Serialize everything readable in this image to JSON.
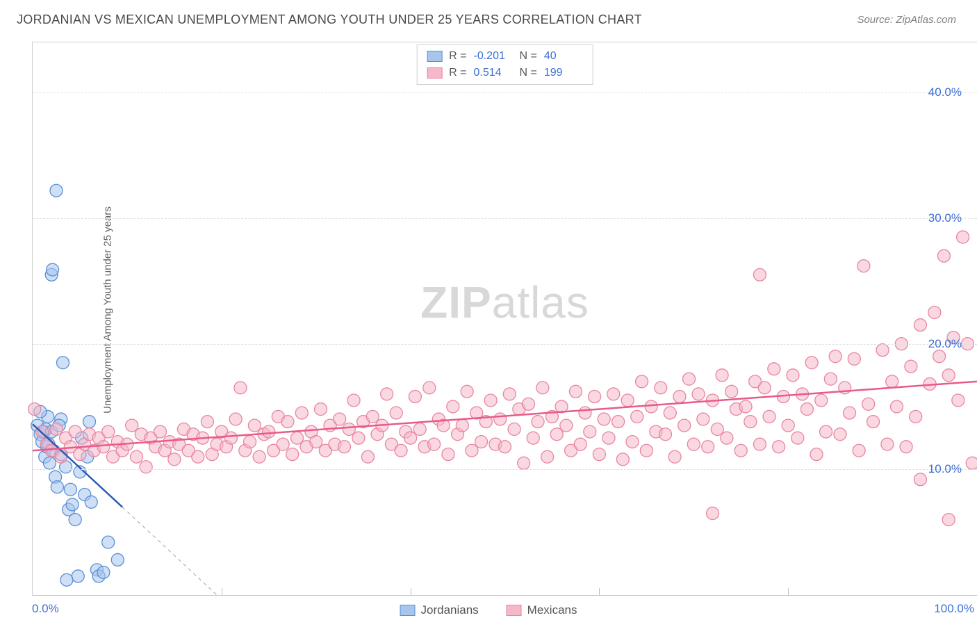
{
  "title": "JORDANIAN VS MEXICAN UNEMPLOYMENT AMONG YOUTH UNDER 25 YEARS CORRELATION CHART",
  "source": "Source: ZipAtlas.com",
  "ylabel": "Unemployment Among Youth under 25 years",
  "watermark_bold": "ZIP",
  "watermark_light": "atlas",
  "chart": {
    "type": "scatter",
    "xlim": [
      0,
      100
    ],
    "ylim": [
      0,
      44
    ],
    "yticks": [
      10,
      20,
      30,
      40
    ],
    "ytick_labels": [
      "10.0%",
      "20.0%",
      "30.0%",
      "40.0%"
    ],
    "xticks": [
      0,
      20,
      40,
      60,
      80,
      100
    ],
    "xtick_labels_visible": {
      "0": "0.0%",
      "100": "100.0%"
    },
    "grid_color": "#e0e0e0",
    "background_color": "#ffffff",
    "tick_color": "#3b6fd6",
    "axis_label_color": "#606060",
    "title_color": "#4a4a4a",
    "marker_radius": 9,
    "marker_stroke_width": 1.3,
    "trend_line_width": 2.5,
    "series": [
      {
        "name": "Jordanians",
        "fill_color": "#a8c5ec",
        "fill_opacity": 0.55,
        "stroke_color": "#5a8fd6",
        "trend_color": "#2a5db8",
        "R": "-0.201",
        "N": "40",
        "trend_solid": {
          "x1": 0,
          "y1": 13.6,
          "x2": 9.5,
          "y2": 7.0
        },
        "trend_dashed": {
          "x1": 9.5,
          "y1": 7.0,
          "x2": 19.5,
          "y2": 0
        },
        "points": [
          [
            0.5,
            13.5
          ],
          [
            0.8,
            12.8
          ],
          [
            1.0,
            12.2
          ],
          [
            1.2,
            13.0
          ],
          [
            1.3,
            11.0
          ],
          [
            1.5,
            11.8
          ],
          [
            1.6,
            14.2
          ],
          [
            1.8,
            10.5
          ],
          [
            2.0,
            25.5
          ],
          [
            2.1,
            25.9
          ],
          [
            2.5,
            32.2
          ],
          [
            0.8,
            14.6
          ],
          [
            1.4,
            13.2
          ],
          [
            1.7,
            12.0
          ],
          [
            2.0,
            13.0
          ],
          [
            2.2,
            11.5
          ],
          [
            2.4,
            9.4
          ],
          [
            2.6,
            8.6
          ],
          [
            3.0,
            11.2
          ],
          [
            3.2,
            18.5
          ],
          [
            3.5,
            10.2
          ],
          [
            3.8,
            6.8
          ],
          [
            4.0,
            8.4
          ],
          [
            4.2,
            7.2
          ],
          [
            4.5,
            6.0
          ],
          [
            3.0,
            14.0
          ],
          [
            5.0,
            9.8
          ],
          [
            5.5,
            8.0
          ],
          [
            5.8,
            11.0
          ],
          [
            6.2,
            7.4
          ],
          [
            6.8,
            2.0
          ],
          [
            7.0,
            1.5
          ],
          [
            7.5,
            1.8
          ],
          [
            8.0,
            4.2
          ],
          [
            9.0,
            2.8
          ],
          [
            4.8,
            1.5
          ],
          [
            3.6,
            1.2
          ],
          [
            2.8,
            13.5
          ],
          [
            5.2,
            12.5
          ],
          [
            6.0,
            13.8
          ]
        ]
      },
      {
        "name": "Mexicans",
        "fill_color": "#f5b8c8",
        "fill_opacity": 0.55,
        "stroke_color": "#e8859f",
        "trend_color": "#e85a8a",
        "R": "0.514",
        "N": "199",
        "trend_solid": {
          "x1": 0,
          "y1": 11.5,
          "x2": 100,
          "y2": 17.0
        },
        "points": [
          [
            0.2,
            14.8
          ],
          [
            1.0,
            13.0
          ],
          [
            1.5,
            12.0
          ],
          [
            2.0,
            11.5
          ],
          [
            2.5,
            13.2
          ],
          [
            3.0,
            11.0
          ],
          [
            3.5,
            12.5
          ],
          [
            4.0,
            11.8
          ],
          [
            4.5,
            13.0
          ],
          [
            5.0,
            11.2
          ],
          [
            5.5,
            12.0
          ],
          [
            6.0,
            12.8
          ],
          [
            6.5,
            11.5
          ],
          [
            7.0,
            12.5
          ],
          [
            7.5,
            11.8
          ],
          [
            8.0,
            13.0
          ],
          [
            8.5,
            11.0
          ],
          [
            9.0,
            12.2
          ],
          [
            9.5,
            11.5
          ],
          [
            10.0,
            12.0
          ],
          [
            10.5,
            13.5
          ],
          [
            11.0,
            11.0
          ],
          [
            11.5,
            12.8
          ],
          [
            12.0,
            10.2
          ],
          [
            12.5,
            12.5
          ],
          [
            13.0,
            11.8
          ],
          [
            13.5,
            13.0
          ],
          [
            14.0,
            11.5
          ],
          [
            14.5,
            12.2
          ],
          [
            15.0,
            10.8
          ],
          [
            15.5,
            12.0
          ],
          [
            16.0,
            13.2
          ],
          [
            16.5,
            11.5
          ],
          [
            17.0,
            12.8
          ],
          [
            17.5,
            11.0
          ],
          [
            18.0,
            12.5
          ],
          [
            18.5,
            13.8
          ],
          [
            19.0,
            11.2
          ],
          [
            19.5,
            12.0
          ],
          [
            20.0,
            13.0
          ],
          [
            20.5,
            11.8
          ],
          [
            21.0,
            12.5
          ],
          [
            21.5,
            14.0
          ],
          [
            22.0,
            16.5
          ],
          [
            22.5,
            11.5
          ],
          [
            23.0,
            12.2
          ],
          [
            23.5,
            13.5
          ],
          [
            24.0,
            11.0
          ],
          [
            24.5,
            12.8
          ],
          [
            25.0,
            13.0
          ],
          [
            25.5,
            11.5
          ],
          [
            26.0,
            14.2
          ],
          [
            26.5,
            12.0
          ],
          [
            27.0,
            13.8
          ],
          [
            27.5,
            11.2
          ],
          [
            28.0,
            12.5
          ],
          [
            28.5,
            14.5
          ],
          [
            29.0,
            11.8
          ],
          [
            29.5,
            13.0
          ],
          [
            30.0,
            12.2
          ],
          [
            30.5,
            14.8
          ],
          [
            31.0,
            11.5
          ],
          [
            31.5,
            13.5
          ],
          [
            32.0,
            12.0
          ],
          [
            32.5,
            14.0
          ],
          [
            33.0,
            11.8
          ],
          [
            33.5,
            13.2
          ],
          [
            34.0,
            15.5
          ],
          [
            34.5,
            12.5
          ],
          [
            35.0,
            13.8
          ],
          [
            35.5,
            11.0
          ],
          [
            36.0,
            14.2
          ],
          [
            36.5,
            12.8
          ],
          [
            37.0,
            13.5
          ],
          [
            37.5,
            16.0
          ],
          [
            38.0,
            12.0
          ],
          [
            38.5,
            14.5
          ],
          [
            39.0,
            11.5
          ],
          [
            39.5,
            13.0
          ],
          [
            40.0,
            12.5
          ],
          [
            40.5,
            15.8
          ],
          [
            41.0,
            13.2
          ],
          [
            41.5,
            11.8
          ],
          [
            42.0,
            16.5
          ],
          [
            42.5,
            12.0
          ],
          [
            43.0,
            14.0
          ],
          [
            43.5,
            13.5
          ],
          [
            44.0,
            11.2
          ],
          [
            44.5,
            15.0
          ],
          [
            45.0,
            12.8
          ],
          [
            45.5,
            13.5
          ],
          [
            46.0,
            16.2
          ],
          [
            46.5,
            11.5
          ],
          [
            47.0,
            14.5
          ],
          [
            47.5,
            12.2
          ],
          [
            48.0,
            13.8
          ],
          [
            48.5,
            15.5
          ],
          [
            49.0,
            12.0
          ],
          [
            49.5,
            14.0
          ],
          [
            50.0,
            11.8
          ],
          [
            50.5,
            16.0
          ],
          [
            51.0,
            13.2
          ],
          [
            51.5,
            14.8
          ],
          [
            52.0,
            10.5
          ],
          [
            52.5,
            15.2
          ],
          [
            53.0,
            12.5
          ],
          [
            53.5,
            13.8
          ],
          [
            54.0,
            16.5
          ],
          [
            54.5,
            11.0
          ],
          [
            55.0,
            14.2
          ],
          [
            55.5,
            12.8
          ],
          [
            56.0,
            15.0
          ],
          [
            56.5,
            13.5
          ],
          [
            57.0,
            11.5
          ],
          [
            57.5,
            16.2
          ],
          [
            58.0,
            12.0
          ],
          [
            58.5,
            14.5
          ],
          [
            59.0,
            13.0
          ],
          [
            59.5,
            15.8
          ],
          [
            60.0,
            11.2
          ],
          [
            60.5,
            14.0
          ],
          [
            61.0,
            12.5
          ],
          [
            61.5,
            16.0
          ],
          [
            62.0,
            13.8
          ],
          [
            62.5,
            10.8
          ],
          [
            63.0,
            15.5
          ],
          [
            63.5,
            12.2
          ],
          [
            64.0,
            14.2
          ],
          [
            64.5,
            17.0
          ],
          [
            65.0,
            11.5
          ],
          [
            65.5,
            15.0
          ],
          [
            66.0,
            13.0
          ],
          [
            66.5,
            16.5
          ],
          [
            67.0,
            12.8
          ],
          [
            67.5,
            14.5
          ],
          [
            68.0,
            11.0
          ],
          [
            68.5,
            15.8
          ],
          [
            69.0,
            13.5
          ],
          [
            69.5,
            17.2
          ],
          [
            70.0,
            12.0
          ],
          [
            70.5,
            16.0
          ],
          [
            71.0,
            14.0
          ],
          [
            71.5,
            11.8
          ],
          [
            72.0,
            15.5
          ],
          [
            72.5,
            13.2
          ],
          [
            73.0,
            17.5
          ],
          [
            73.5,
            12.5
          ],
          [
            74.0,
            16.2
          ],
          [
            74.5,
            14.8
          ],
          [
            75.0,
            11.5
          ],
          [
            75.5,
            15.0
          ],
          [
            76.0,
            13.8
          ],
          [
            76.5,
            17.0
          ],
          [
            77.0,
            12.0
          ],
          [
            77.5,
            16.5
          ],
          [
            78.0,
            14.2
          ],
          [
            78.5,
            18.0
          ],
          [
            79.0,
            11.8
          ],
          [
            79.5,
            15.8
          ],
          [
            80.0,
            13.5
          ],
          [
            80.5,
            17.5
          ],
          [
            81.0,
            12.5
          ],
          [
            81.5,
            16.0
          ],
          [
            82.0,
            14.8
          ],
          [
            82.5,
            18.5
          ],
          [
            83.0,
            11.2
          ],
          [
            83.5,
            15.5
          ],
          [
            84.0,
            13.0
          ],
          [
            84.5,
            17.2
          ],
          [
            85.0,
            19.0
          ],
          [
            85.5,
            12.8
          ],
          [
            86.0,
            16.5
          ],
          [
            86.5,
            14.5
          ],
          [
            87.0,
            18.8
          ],
          [
            87.5,
            11.5
          ],
          [
            77.0,
            25.5
          ],
          [
            88.5,
            15.2
          ],
          [
            89.0,
            13.8
          ],
          [
            72.0,
            6.5
          ],
          [
            90.0,
            19.5
          ],
          [
            90.5,
            12.0
          ],
          [
            91.0,
            17.0
          ],
          [
            91.5,
            15.0
          ],
          [
            92.0,
            20.0
          ],
          [
            92.5,
            11.8
          ],
          [
            93.0,
            18.2
          ],
          [
            93.5,
            14.2
          ],
          [
            94.0,
            21.5
          ],
          [
            88.0,
            26.2
          ],
          [
            95.0,
            16.8
          ],
          [
            95.5,
            22.5
          ],
          [
            96.0,
            19.0
          ],
          [
            96.5,
            27.0
          ],
          [
            97.0,
            17.5
          ],
          [
            97.5,
            20.5
          ],
          [
            98.0,
            15.5
          ],
          [
            98.5,
            28.5
          ],
          [
            99.0,
            20.0
          ],
          [
            94.0,
            9.2
          ],
          [
            97.0,
            6.0
          ],
          [
            99.5,
            10.5
          ]
        ]
      }
    ]
  },
  "legend_bottom": [
    {
      "label": "Jordanians",
      "fill": "#a8c5ec",
      "stroke": "#5a8fd6"
    },
    {
      "label": "Mexicans",
      "fill": "#f5b8c8",
      "stroke": "#e8859f"
    }
  ]
}
